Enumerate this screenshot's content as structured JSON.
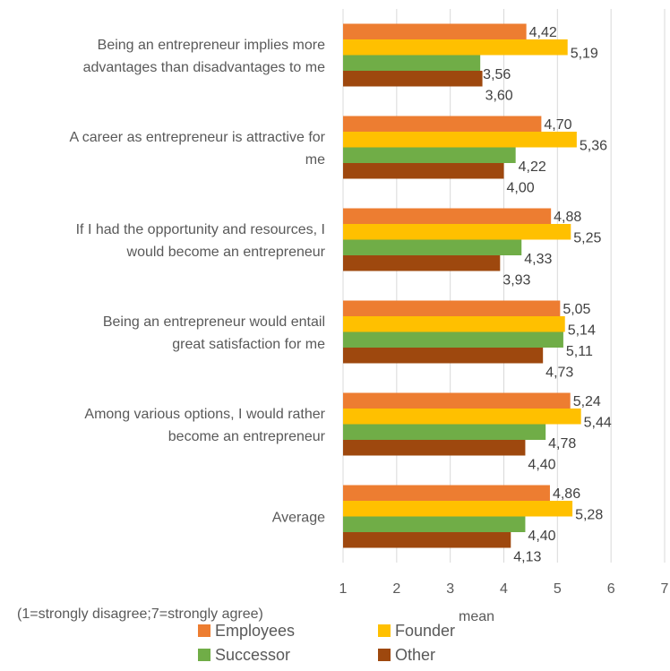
{
  "chart_data": {
    "type": "bar",
    "orientation": "horizontal",
    "categories": [
      [
        "Being an entrepreneur implies more",
        "advantages than disadvantages to me"
      ],
      [
        "A career as entrepreneur is attractive for",
        "me"
      ],
      [
        "If I had the opportunity and resources, I",
        "would become an entrepreneur"
      ],
      [
        "Being an entrepreneur would entail",
        "great satisfaction for me"
      ],
      [
        "Among various options, I would rather",
        "become an entrepreneur"
      ],
      [
        "Average"
      ]
    ],
    "series": [
      {
        "name": "Employees",
        "color": "#ed7d31",
        "values": [
          4.42,
          4.7,
          4.88,
          5.05,
          5.24,
          4.86
        ],
        "labels": [
          "4,42",
          "4,70",
          "4,88",
          "5,05",
          "5,24",
          "4,86"
        ]
      },
      {
        "name": "Founder",
        "color": "#ffc000",
        "values": [
          5.19,
          5.36,
          5.25,
          5.14,
          5.44,
          5.28
        ],
        "labels": [
          "5,19",
          "5,36",
          "5,25",
          "5,14",
          "5,44",
          "5,28"
        ]
      },
      {
        "name": "Successor",
        "color": "#70ad47",
        "values": [
          3.56,
          4.22,
          4.33,
          5.11,
          4.78,
          4.4
        ],
        "labels": [
          "3,56",
          "4,22",
          "4,33",
          "5,11",
          "4,78",
          "4,40"
        ]
      },
      {
        "name": "Other",
        "color": "#9e480e",
        "values": [
          3.6,
          4.0,
          3.93,
          4.73,
          4.4,
          4.13
        ],
        "labels": [
          "3,60",
          "4,00",
          "3,93",
          "4,73",
          "4,40",
          "4,13"
        ]
      }
    ],
    "xlim": [
      1,
      7
    ],
    "xticks": [
      "1",
      "2",
      "3",
      "4",
      "5",
      "6",
      "7"
    ],
    "xlabel": "mean",
    "note": "(1=strongly disagree;7=strongly agree)",
    "grid": true,
    "legend_position": "bottom"
  }
}
